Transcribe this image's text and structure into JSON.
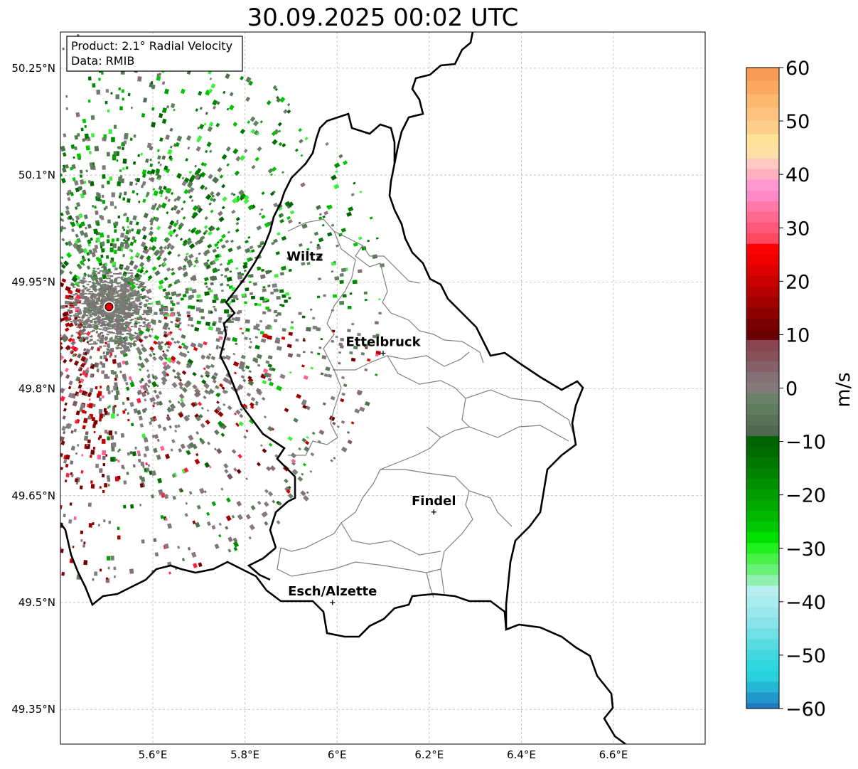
{
  "title": "30.09.2025 00:02 UTC",
  "info_box": {
    "line1": "Product: 2.1° Radial Velocity",
    "line2": "Data: RMIB"
  },
  "map": {
    "lon_range": [
      5.4,
      6.8
    ],
    "lat_range": [
      49.3,
      50.3
    ],
    "lat_ticks": [
      "50.25°N",
      "50.1°N",
      "49.95°N",
      "49.8°N",
      "49.65°N",
      "49.5°N",
      "49.35°N"
    ],
    "lon_ticks": [
      "5.6°E",
      "5.8°E",
      "6°E",
      "6.2°E",
      "6.4°E",
      "6.6°E"
    ],
    "radar_site": {
      "lon": 5.505,
      "lat": 49.915
    },
    "cities": [
      {
        "name": "Wiltz",
        "lon": 5.93,
        "lat": 49.97,
        "marker": false
      },
      {
        "name": "Ettelbruck",
        "lon": 6.1,
        "lat": 49.85,
        "marker": true
      },
      {
        "name": "Findel",
        "lon": 6.21,
        "lat": 49.627,
        "marker": true
      },
      {
        "name": "Esch/Alzette",
        "lon": 5.99,
        "lat": 49.5,
        "marker": true
      }
    ]
  },
  "colorbar": {
    "label": "m/s",
    "ticks": [
      "60",
      "50",
      "40",
      "30",
      "20",
      "10",
      "0",
      "−10",
      "−20",
      "−30",
      "−40",
      "−50",
      "−60"
    ],
    "range": [
      -60,
      60
    ],
    "colors": {
      "deep_blue": "#1f78c0",
      "cyan": "#2fd8e0",
      "light_cyan": "#b8eef0",
      "light_green": "#90f0b0",
      "bright_green": "#00e000",
      "dark_green": "#006400",
      "gray_green": "#5a7a5a",
      "gray_mauve": "#867078",
      "dark_red": "#700000",
      "red": "#ff0000",
      "pink": "#ff88c8",
      "peach": "#ffe0a0",
      "orange": "#ffa050"
    }
  }
}
